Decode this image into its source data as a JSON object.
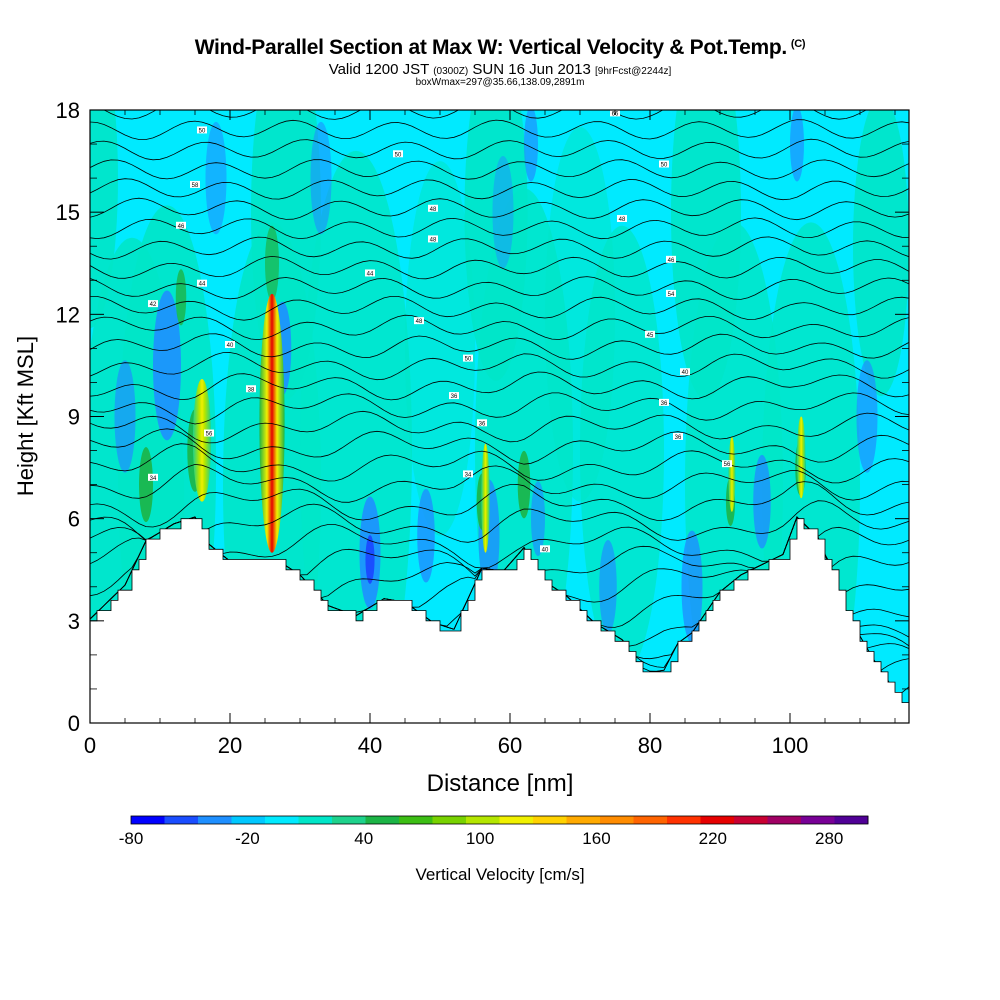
{
  "title": "Wind-Parallel Section at Max W: Vertical Velocity & Pot.Temp.",
  "copyright": "(C)",
  "subtitle": {
    "prefix": "Valid 1200 JST",
    "utc": "(0300Z)",
    "date": "SUN 16 Jun 2013",
    "forecast": "[9hrFcst@2244z]"
  },
  "subsubtitle": "boxWmax=297@35.66,138.09,2891m",
  "colors": {
    "cyan_bg": "#00eaff",
    "terrain": "#ffffff"
  },
  "chart_data": {
    "type": "heatmap",
    "xlabel": "Distance [nm]",
    "ylabel": "Height [Kft MSL]",
    "xlim": [
      0,
      117
    ],
    "ylim": [
      0,
      18
    ],
    "x_ticks": [
      0,
      20,
      40,
      60,
      80,
      100
    ],
    "y_ticks": [
      0,
      3,
      6,
      9,
      12,
      15,
      18
    ],
    "colorbar": {
      "label": "Vertical Velocity [cm/s]",
      "tick_labels": [
        "-80",
        "-20",
        "40",
        "100",
        "160",
        "220",
        "280"
      ],
      "bounds": [
        -80,
        300
      ],
      "colors": [
        "#0000ff",
        "#1a4dff",
        "#1e8fff",
        "#00c8ff",
        "#00eaff",
        "#00e6c8",
        "#1ed28c",
        "#1cb446",
        "#3cbe14",
        "#78d200",
        "#b4e600",
        "#f0f000",
        "#ffd200",
        "#ffaa00",
        "#ff8c00",
        "#ff6400",
        "#ff3200",
        "#e60000",
        "#c80032",
        "#a00064",
        "#780096",
        "#500096"
      ]
    },
    "terrain_height_kft": [
      [
        0,
        3
      ],
      [
        5,
        4
      ],
      [
        8,
        5.3
      ],
      [
        12,
        5.8
      ],
      [
        15,
        6
      ],
      [
        17,
        5.2
      ],
      [
        20,
        4.7
      ],
      [
        27,
        4.7
      ],
      [
        30,
        4.3
      ],
      [
        34,
        3.4
      ],
      [
        38,
        3.1
      ],
      [
        42,
        3.6
      ],
      [
        45,
        3.5
      ],
      [
        49,
        2.9
      ],
      [
        52,
        2.7
      ],
      [
        56,
        4.5
      ],
      [
        59,
        4.4
      ],
      [
        62,
        5.1
      ],
      [
        65,
        4.1
      ],
      [
        68,
        3.7
      ],
      [
        72,
        2.9
      ],
      [
        76,
        2.4
      ],
      [
        79,
        1.4
      ],
      [
        82,
        1.5
      ],
      [
        84,
        2.3
      ],
      [
        86,
        2.6
      ],
      [
        88,
        3.2
      ],
      [
        90,
        3.8
      ],
      [
        93,
        4.3
      ],
      [
        96,
        4.6
      ],
      [
        99,
        4.9
      ],
      [
        101,
        6
      ],
      [
        104,
        5.4
      ],
      [
        106,
        4.4
      ],
      [
        108,
        3.2
      ],
      [
        110,
        2.5
      ],
      [
        112,
        1.8
      ],
      [
        114,
        1.2
      ],
      [
        116,
        0.5
      ],
      [
        117,
        0.4
      ]
    ],
    "isentrope_labels": [
      {
        "x": 16,
        "y": 17.4,
        "text": "50"
      },
      {
        "x": 44,
        "y": 16.7,
        "text": "50"
      },
      {
        "x": 82,
        "y": 16.4,
        "text": "50"
      },
      {
        "x": 75,
        "y": 17.9,
        "text": "66"
      },
      {
        "x": 15,
        "y": 15.8,
        "text": "58"
      },
      {
        "x": 13,
        "y": 14.6,
        "text": "46"
      },
      {
        "x": 49,
        "y": 15.1,
        "text": "48"
      },
      {
        "x": 76,
        "y": 14.8,
        "text": "48"
      },
      {
        "x": 49,
        "y": 14.2,
        "text": "48"
      },
      {
        "x": 83,
        "y": 13.6,
        "text": "46"
      },
      {
        "x": 16,
        "y": 12.9,
        "text": "44"
      },
      {
        "x": 40,
        "y": 13.2,
        "text": "44"
      },
      {
        "x": 83,
        "y": 12.6,
        "text": "54"
      },
      {
        "x": 9,
        "y": 12.3,
        "text": "42"
      },
      {
        "x": 47,
        "y": 11.8,
        "text": "48"
      },
      {
        "x": 80,
        "y": 11.4,
        "text": "45"
      },
      {
        "x": 20,
        "y": 11.1,
        "text": "40"
      },
      {
        "x": 54,
        "y": 10.7,
        "text": "50"
      },
      {
        "x": 85,
        "y": 10.3,
        "text": "40"
      },
      {
        "x": 23,
        "y": 9.8,
        "text": "38"
      },
      {
        "x": 52,
        "y": 9.6,
        "text": "36"
      },
      {
        "x": 82,
        "y": 9.4,
        "text": "36"
      },
      {
        "x": 56,
        "y": 8.8,
        "text": "36"
      },
      {
        "x": 17,
        "y": 8.5,
        "text": "56"
      },
      {
        "x": 84,
        "y": 8.4,
        "text": "36"
      },
      {
        "x": 91,
        "y": 7.6,
        "text": "56"
      },
      {
        "x": 54,
        "y": 7.3,
        "text": "34"
      },
      {
        "x": 9,
        "y": 7.2,
        "text": "34"
      },
      {
        "x": 65,
        "y": 5.1,
        "text": "40"
      }
    ]
  }
}
